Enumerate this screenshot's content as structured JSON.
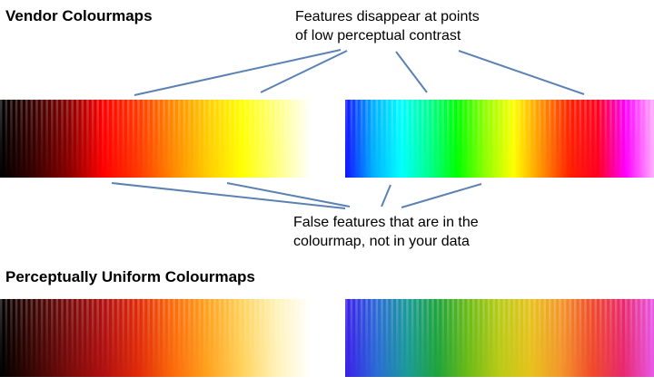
{
  "headings": {
    "vendor": "Vendor Colourmaps",
    "uniform": "Perceptually Uniform Colourmaps"
  },
  "annotations": {
    "top_line1": "Features disappear at points",
    "top_line2": "of low perceptual contrast",
    "bottom_line1": "False features that are in the",
    "bottom_line2": "colourmap, not in your data"
  },
  "colourmaps": {
    "vendor_heat": [
      "#000000",
      "#3a0000",
      "#8a0000",
      "#ff0000",
      "#ff3800",
      "#ff8800",
      "#ffcc00",
      "#ffff00",
      "#ffff80",
      "#ffffff"
    ],
    "vendor_rainbow": [
      "#1010ff",
      "#00b0ff",
      "#00ffff",
      "#00ff90",
      "#00ff00",
      "#90ff00",
      "#ffff00",
      "#ff9000",
      "#ff2000",
      "#ff0020",
      "#ff00ff",
      "#ffb0ff"
    ],
    "uniform_heat": [
      "#000000",
      "#3c0604",
      "#7a0b0b",
      "#b01010",
      "#e02a08",
      "#fb6a0a",
      "#ffa21e",
      "#ffd25a",
      "#fff2b8",
      "#ffffff"
    ],
    "uniform_rainbow": [
      "#3a1ee8",
      "#2a6ad6",
      "#1a9a9a",
      "#1ea43a",
      "#6cbc16",
      "#b8cb16",
      "#e7c21c",
      "#f3962a",
      "#f04a2a",
      "#e8286e",
      "#e858e8"
    ]
  },
  "colors": {
    "callout_line": "#5b82b3"
  }
}
